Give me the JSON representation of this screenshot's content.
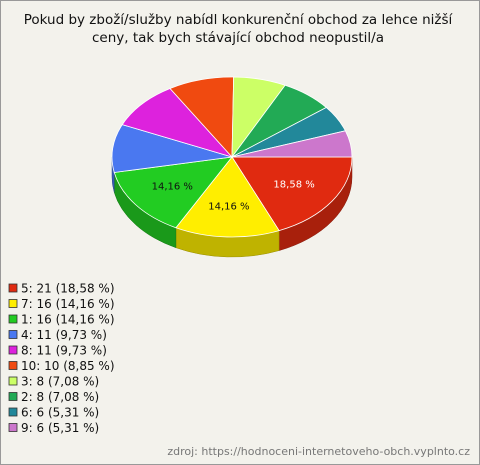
{
  "chart_data": {
    "type": "pie",
    "title": [
      "Pokud by zboží/služby nabídl konkurenční obchod za lehce nižší",
      "ceny, tak bych stávající obchod neopustil/a"
    ],
    "categories": [
      "5: 21 (18,58 %)",
      "7: 16 (14,16 %)",
      "1: 16 (14,16 %)",
      "4: 11 (9,73 %)",
      "8: 11 (9,73 %)",
      "10: 10 (8,85 %)",
      "3: 8 (7,08 %)",
      "2: 8 (7,08 %)",
      "6: 6 (5,31 %)",
      "9: 6 (5,31 %)"
    ],
    "values": [
      18.58,
      14.16,
      14.16,
      9.73,
      9.73,
      8.85,
      7.08,
      7.08,
      5.31,
      5.31
    ],
    "value_labels": [
      "18,58 %",
      "14,16 %",
      "14,16 %",
      null,
      null,
      null,
      null,
      null,
      null,
      null
    ],
    "colors": [
      "#e02a10",
      "#ffee00",
      "#22cc22",
      "#4a78f0",
      "#dd22dd",
      "#f04a10",
      "#ccff66",
      "#22aa55",
      "#22889a",
      "#cc77cc"
    ],
    "source": "zdroj: https://hodnoceni-internetoveho-obch.vyplnto.cz"
  }
}
